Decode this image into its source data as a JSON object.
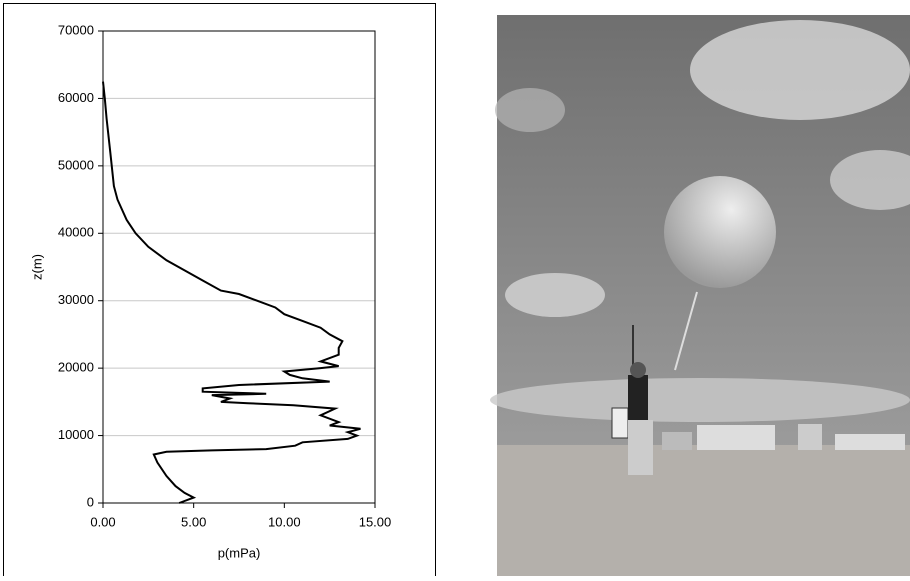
{
  "chart_data": {
    "type": "line",
    "x_label": "p(mPa)",
    "y_label": "z(m)",
    "x": [
      4.2,
      5.0,
      4.5,
      4.0,
      3.5,
      3.0,
      2.8,
      3.5,
      6,
      9,
      10.6,
      11,
      13.5,
      14,
      13.5,
      14.2,
      12.5,
      13,
      12,
      12.8,
      10.5,
      8,
      6.5,
      7,
      6,
      9,
      5.5,
      5.5,
      7.5,
      12.5,
      11,
      10.3,
      10,
      12,
      13,
      12,
      13,
      13,
      13.2,
      12.5,
      12,
      11,
      10,
      9.5,
      8.5,
      7.5,
      6.5,
      5.5,
      4.5,
      3.5,
      2.5,
      1.8,
      1.3,
      0.8,
      0.6,
      0.4,
      0.2,
      0.1,
      0
    ],
    "values": [
      0,
      800,
      1500,
      2500,
      4000,
      6000,
      7200,
      7600,
      7800,
      8000,
      8500,
      9000,
      9500,
      10000,
      10500,
      11000,
      11500,
      12000,
      13000,
      14000,
      14500,
      14800,
      15000,
      15500,
      16000,
      16200,
      16500,
      17000,
      17500,
      18000,
      18500,
      19000,
      19500,
      20000,
      20300,
      21000,
      22000,
      23000,
      24000,
      25000,
      26000,
      27000,
      28000,
      29000,
      30000,
      31000,
      31500,
      33000,
      34500,
      36000,
      38000,
      40000,
      42000,
      45000,
      47000,
      52000,
      57000,
      60000,
      62500
    ],
    "color": "#000000",
    "xlim": [
      0,
      15
    ],
    "xticks": [
      {
        "value": 0,
        "label": "0.00"
      },
      {
        "value": 5,
        "label": "5.00"
      },
      {
        "value": 10,
        "label": "10.00"
      },
      {
        "value": 15,
        "label": "15.00"
      }
    ],
    "ylim": [
      0,
      70000
    ],
    "yticks": [
      0,
      10000,
      20000,
      30000,
      40000,
      50000,
      60000,
      70000
    ],
    "grid": true
  }
}
